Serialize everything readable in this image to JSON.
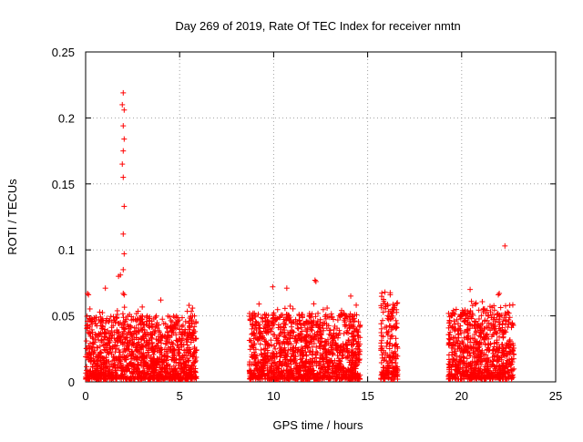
{
  "chart_data": {
    "type": "scatter",
    "title": "Day 269 of 2019, Rate Of TEC Index for receiver nmtn",
    "xlabel": "GPS time / hours",
    "ylabel": "ROTI / TECUs",
    "xlim": [
      0,
      25
    ],
    "ylim": [
      0,
      0.25
    ],
    "xticks": [
      0,
      5,
      10,
      15,
      20,
      25
    ],
    "yticks": [
      0,
      0.05,
      0.1,
      0.15,
      0.2,
      0.25
    ],
    "xtick_labels": [
      "0",
      "5",
      "10",
      "15",
      "20",
      "25"
    ],
    "ytick_labels": [
      "0",
      "0.05",
      "0.1",
      "0.15",
      "0.2",
      "0.25"
    ],
    "grid": true,
    "marker": "+",
    "color": "#ff0000",
    "series": [
      {
        "name": "ROTI",
        "notable_points": [
          {
            "x": 2.0,
            "y": 0.219
          },
          {
            "x": 1.95,
            "y": 0.21
          },
          {
            "x": 2.05,
            "y": 0.206
          },
          {
            "x": 2.0,
            "y": 0.194
          },
          {
            "x": 2.05,
            "y": 0.184
          },
          {
            "x": 2.0,
            "y": 0.175
          },
          {
            "x": 1.95,
            "y": 0.165
          },
          {
            "x": 2.0,
            "y": 0.155
          },
          {
            "x": 2.05,
            "y": 0.133
          },
          {
            "x": 2.0,
            "y": 0.112
          },
          {
            "x": 2.05,
            "y": 0.097
          },
          {
            "x": 2.0,
            "y": 0.085
          },
          {
            "x": 1.75,
            "y": 0.08
          },
          {
            "x": 1.85,
            "y": 0.081
          },
          {
            "x": 1.05,
            "y": 0.071
          },
          {
            "x": 2.0,
            "y": 0.067
          },
          {
            "x": 2.05,
            "y": 0.066
          },
          {
            "x": 0.1,
            "y": 0.067
          },
          {
            "x": 0.15,
            "y": 0.066
          },
          {
            "x": 22.3,
            "y": 0.103
          },
          {
            "x": 12.2,
            "y": 0.077
          },
          {
            "x": 12.25,
            "y": 0.076
          },
          {
            "x": 9.95,
            "y": 0.072
          },
          {
            "x": 10.7,
            "y": 0.071
          },
          {
            "x": 20.45,
            "y": 0.07
          },
          {
            "x": 16.2,
            "y": 0.066
          },
          {
            "x": 21.95,
            "y": 0.066
          },
          {
            "x": 22.0,
            "y": 0.067
          },
          {
            "x": 14.1,
            "y": 0.065
          },
          {
            "x": 4.0,
            "y": 0.062
          },
          {
            "x": 5.5,
            "y": 0.058
          }
        ],
        "dense_segments": [
          {
            "x_start": 0.0,
            "x_end": 5.9,
            "y_typ_max": 0.05,
            "y_min": 0.002
          },
          {
            "x_start": 8.7,
            "x_end": 14.6,
            "y_typ_max": 0.052,
            "y_min": 0.002
          },
          {
            "x_start": 15.7,
            "x_end": 16.6,
            "y_typ_max": 0.06,
            "y_min": 0.002
          },
          {
            "x_start": 19.3,
            "x_end": 22.8,
            "y_typ_max": 0.055,
            "y_min": 0.002
          }
        ]
      }
    ]
  }
}
